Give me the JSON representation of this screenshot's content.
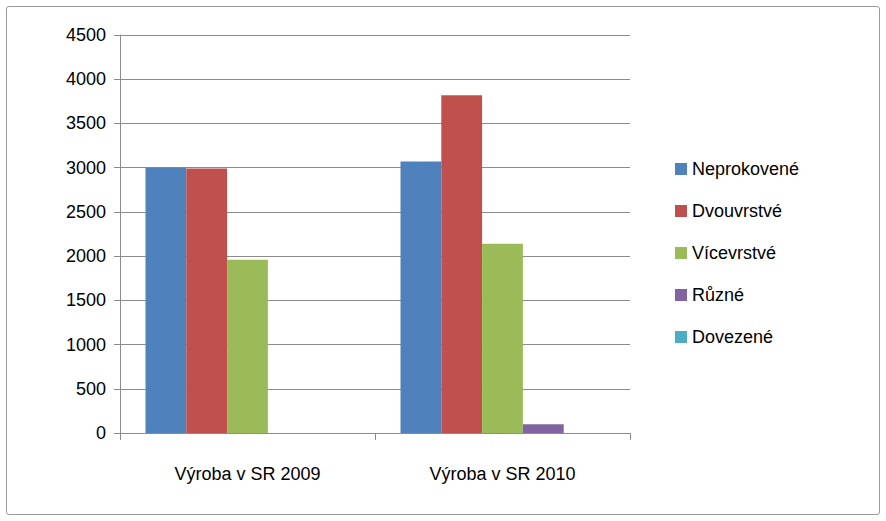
{
  "chart_data": {
    "type": "bar",
    "categories": [
      "Výroba v SR 2009",
      "Výroba v SR 2010"
    ],
    "series": [
      {
        "name": "Neprokovené",
        "color": "#4f81bd",
        "values": [
          3000,
          3070
        ]
      },
      {
        "name": "Dvouvrstvé",
        "color": "#c0504d",
        "values": [
          2990,
          3820
        ]
      },
      {
        "name": "Vícevrstvé",
        "color": "#9bbb59",
        "values": [
          1960,
          2140
        ]
      },
      {
        "name": "Různé",
        "color": "#8064a2",
        "values": [
          0,
          100
        ]
      },
      {
        "name": "Dovezené",
        "color": "#4bacc6",
        "values": [
          0,
          0
        ]
      }
    ],
    "ylim": [
      0,
      4500
    ],
    "yticks": [
      0,
      500,
      1000,
      1500,
      2000,
      2500,
      3000,
      3500,
      4000,
      4500
    ],
    "grid": true,
    "legend": "right"
  }
}
